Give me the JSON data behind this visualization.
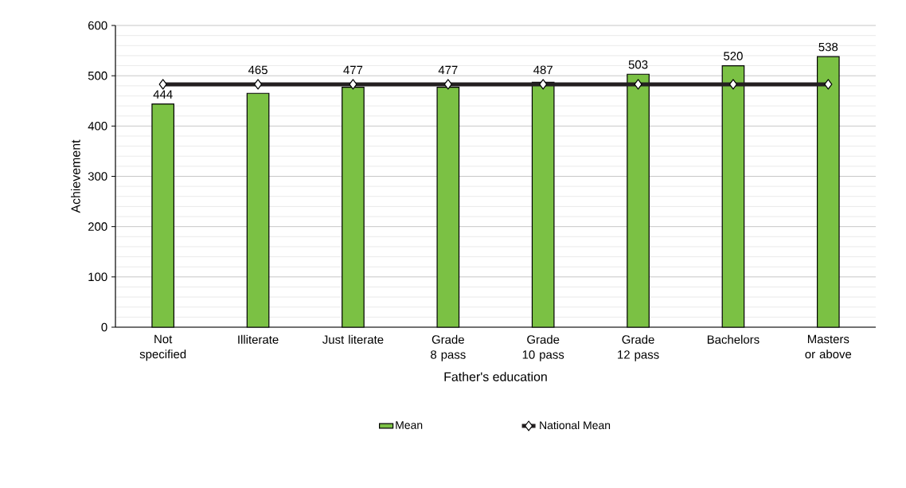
{
  "chart_data": {
    "type": "bar",
    "xlabel": "Father's education",
    "ylabel": "Achievement",
    "categories": [
      "Not specified",
      "Illiterate",
      "Just literate",
      "Grade 8 pass",
      "Grade 10 pass",
      "Grade 12 pass",
      "Bachelors",
      "Masters or above"
    ],
    "series": [
      {
        "name": "Mean",
        "color": "#7bc144",
        "values": [
          444,
          465,
          477,
          477,
          487,
          503,
          520,
          538
        ],
        "data_labels": true
      },
      {
        "name": "National Mean",
        "type": "line",
        "color": "#231f20",
        "marker": "diamond",
        "values": [
          483,
          483,
          483,
          483,
          483,
          483,
          483,
          483
        ]
      }
    ],
    "ylim": [
      0,
      600
    ],
    "yticks": [
      0,
      100,
      200,
      300,
      400,
      500,
      600
    ],
    "grid": "y",
    "legend": "bottom"
  }
}
